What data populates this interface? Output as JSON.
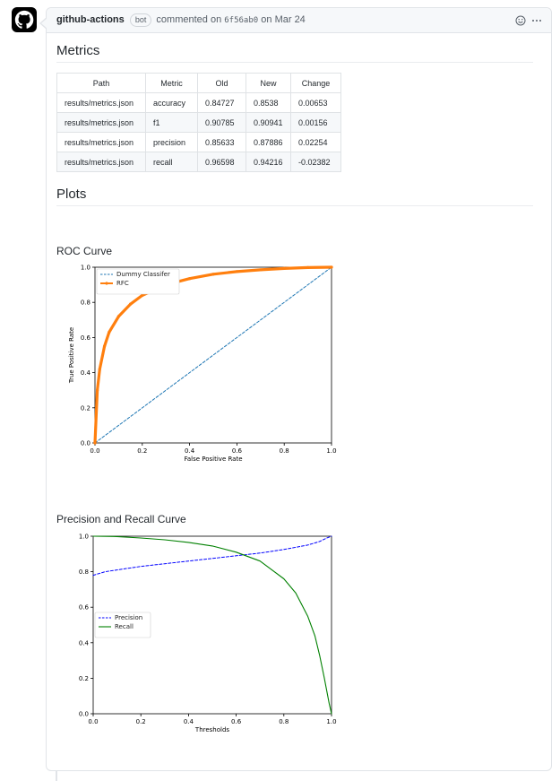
{
  "header": {
    "author": "github-actions",
    "badge": "bot",
    "action": "commented on",
    "commit": "6f56ab0",
    "date_prefix": "on",
    "date": "Mar 24"
  },
  "sections": {
    "metrics_title": "Metrics",
    "plots_title": "Plots",
    "roc_title": "ROC Curve",
    "pr_title": "Precision and Recall Curve"
  },
  "table": {
    "headers": [
      "Path",
      "Metric",
      "Old",
      "New",
      "Change"
    ],
    "rows": [
      [
        "results/metrics.json",
        "accuracy",
        "0.84727",
        "0.8538",
        "0.00653"
      ],
      [
        "results/metrics.json",
        "f1",
        "0.90785",
        "0.90941",
        "0.00156"
      ],
      [
        "results/metrics.json",
        "precision",
        "0.85633",
        "0.87886",
        "0.02254"
      ],
      [
        "results/metrics.json",
        "recall",
        "0.96598",
        "0.94216",
        "-0.02382"
      ]
    ]
  },
  "colors": {
    "dummy": "#1f77b4",
    "rfc": "#ff7f0e",
    "precision": "#0000ff",
    "recall": "#008000"
  },
  "chart_data": [
    {
      "type": "line",
      "title": "",
      "xlabel": "False Positive Rate",
      "ylabel": "True Positive Rate",
      "xlim": [
        0,
        1
      ],
      "ylim": [
        0,
        1
      ],
      "xticks": [
        "0.0",
        "0.2",
        "0.4",
        "0.6",
        "0.8",
        "1.0"
      ],
      "yticks": [
        "0.0",
        "0.2",
        "0.4",
        "0.6",
        "0.8",
        "1.0"
      ],
      "legend": "top-left",
      "series": [
        {
          "name": "Dummy Classifer",
          "style": "dashed",
          "x": [
            0,
            1
          ],
          "y": [
            0,
            1
          ]
        },
        {
          "name": "RFC",
          "style": "solid-markers",
          "x": [
            0,
            0.01,
            0.02,
            0.04,
            0.06,
            0.1,
            0.15,
            0.2,
            0.3,
            0.4,
            0.5,
            0.6,
            0.7,
            0.8,
            0.9,
            1.0
          ],
          "y": [
            0,
            0.3,
            0.42,
            0.55,
            0.63,
            0.72,
            0.79,
            0.84,
            0.9,
            0.935,
            0.96,
            0.975,
            0.985,
            0.993,
            0.998,
            1.0
          ]
        }
      ]
    },
    {
      "type": "line",
      "title": "",
      "xlabel": "Thresholds",
      "ylabel": "",
      "xlim": [
        0,
        1
      ],
      "ylim": [
        0,
        1
      ],
      "xticks": [
        "0.0",
        "0.2",
        "0.4",
        "0.6",
        "0.8",
        "1.0"
      ],
      "yticks": [
        "0.0",
        "0.2",
        "0.4",
        "0.6",
        "0.8",
        "1.0"
      ],
      "legend": "center-left",
      "series": [
        {
          "name": "Precision",
          "style": "dashed",
          "x": [
            0,
            0.05,
            0.1,
            0.2,
            0.3,
            0.4,
            0.5,
            0.6,
            0.7,
            0.8,
            0.9,
            0.95,
            0.98,
            1.0
          ],
          "y": [
            0.78,
            0.8,
            0.81,
            0.83,
            0.845,
            0.86,
            0.875,
            0.89,
            0.905,
            0.925,
            0.95,
            0.97,
            0.99,
            1.0
          ]
        },
        {
          "name": "Recall",
          "style": "solid",
          "x": [
            0,
            0.1,
            0.2,
            0.3,
            0.4,
            0.5,
            0.6,
            0.7,
            0.8,
            0.85,
            0.9,
            0.93,
            0.95,
            0.97,
            0.99,
            1.0
          ],
          "y": [
            1.0,
            0.998,
            0.99,
            0.98,
            0.965,
            0.945,
            0.91,
            0.86,
            0.76,
            0.68,
            0.55,
            0.44,
            0.33,
            0.2,
            0.06,
            0.0
          ]
        }
      ]
    }
  ]
}
